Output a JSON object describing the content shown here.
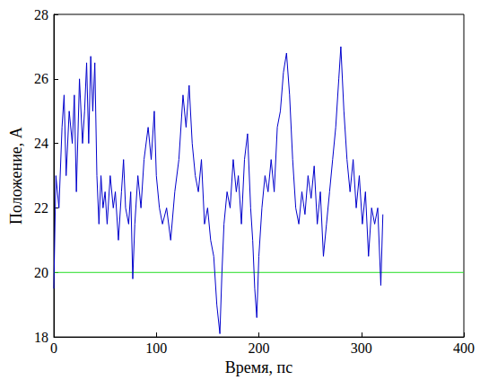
{
  "chart_data": {
    "type": "line",
    "x_label": "Время, пс",
    "y_label": "Положение, А",
    "xlim": [
      0,
      400
    ],
    "xticks": [
      0,
      100,
      200,
      300,
      400
    ],
    "ylim": [
      18,
      28
    ],
    "yticks": [
      18,
      20,
      22,
      24,
      26,
      28
    ],
    "grid": false,
    "series": [
      {
        "color": "#0000cc",
        "line_style": "solid",
        "x": [
          0,
          2,
          5,
          8,
          10,
          12,
          15,
          18,
          20,
          22,
          25,
          28,
          30,
          32,
          34,
          36,
          38,
          40,
          42,
          44,
          46,
          48,
          50,
          52,
          55,
          58,
          60,
          63,
          66,
          68,
          70,
          73,
          75,
          77,
          79,
          82,
          85,
          88,
          92,
          95,
          98,
          100,
          103,
          106,
          110,
          114,
          118,
          122,
          126,
          129,
          132,
          135,
          138,
          141,
          144,
          147,
          150,
          153,
          156,
          159,
          162,
          164,
          166,
          169,
          172,
          175,
          178,
          180,
          183,
          186,
          189,
          192,
          194,
          196,
          198,
          200,
          203,
          206,
          209,
          212,
          215,
          218,
          221,
          224,
          227,
          230,
          233,
          236,
          239,
          242,
          245,
          248,
          251,
          254,
          257,
          260,
          263,
          266,
          269,
          272,
          275,
          278,
          280,
          283,
          286,
          289,
          292,
          295,
          298,
          301,
          304,
          307,
          310,
          313,
          316,
          319,
          321
        ],
        "values": [
          19.5,
          23,
          22,
          24.5,
          25.5,
          23,
          25,
          24,
          25.5,
          22.5,
          26,
          24,
          25,
          26.5,
          24,
          26.7,
          25,
          26.5,
          23,
          21.5,
          23,
          22,
          22.5,
          21.5,
          23,
          22,
          22.5,
          21,
          22.5,
          23.5,
          22,
          21.5,
          22.5,
          19.8,
          21.5,
          23,
          22,
          23.5,
          24.5,
          23.5,
          25,
          23,
          22,
          21.5,
          22,
          21,
          22.5,
          23.5,
          25.5,
          24.5,
          25.8,
          24,
          23,
          22.5,
          23.5,
          21.5,
          22,
          21,
          20.5,
          19,
          18.1,
          20,
          21.5,
          22.5,
          22,
          23.5,
          22.5,
          23,
          21.5,
          23.5,
          24.3,
          22,
          21,
          19.5,
          18.6,
          20.5,
          22,
          23,
          22.5,
          23.5,
          22.5,
          24.5,
          25,
          26.2,
          26.8,
          25.5,
          23.5,
          22,
          21.5,
          22.5,
          21.8,
          23,
          22.3,
          23.3,
          21.5,
          22.5,
          20.5,
          21.5,
          22.5,
          23.5,
          24.5,
          26,
          27,
          25,
          23.5,
          22.5,
          23.5,
          22,
          23,
          21.5,
          22.5,
          20.5,
          22,
          21.5,
          22,
          19.6,
          21.8
        ]
      },
      {
        "color": "#22dd22",
        "line_style": "solid",
        "x": [
          0,
          400
        ],
        "values": [
          20,
          20
        ]
      }
    ]
  }
}
